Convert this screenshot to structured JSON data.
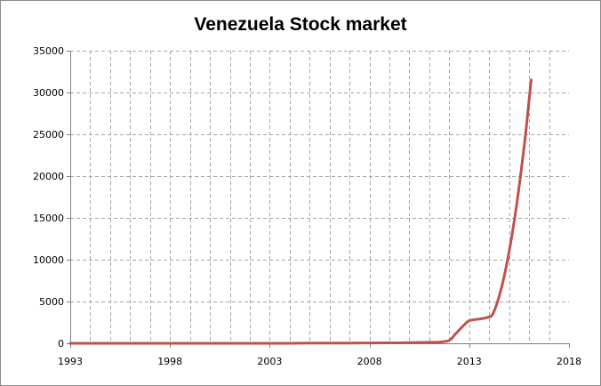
{
  "chart_data": {
    "type": "line",
    "title": "Venezuela Stock market",
    "xlabel": "",
    "ylabel": "",
    "xlim": [
      1993,
      2018
    ],
    "ylim": [
      0,
      35000
    ],
    "x_ticks": [
      "1993",
      "1998",
      "2003",
      "2008",
      "2013",
      "2018"
    ],
    "y_ticks": [
      "0",
      "5000",
      "10000",
      "15000",
      "20000",
      "25000",
      "30000",
      "35000"
    ],
    "grid": true,
    "legend": "none",
    "series": [
      {
        "color": "#c0504d",
        "x": [
          1993,
          1995,
          1997,
          1999,
          2001,
          2003,
          2005,
          2007,
          2008,
          2009,
          2010,
          2011,
          2011.5,
          2012,
          2012.3,
          2012.7,
          2013,
          2013.5,
          2013.9,
          2014.2,
          2014.6,
          2015,
          2015.4,
          2015.8,
          2016.1
        ],
        "y": [
          0,
          0,
          0,
          0,
          0,
          0,
          20,
          30,
          40,
          50,
          80,
          120,
          150,
          350,
          1100,
          2100,
          2700,
          2900,
          3100,
          3600,
          6500,
          11000,
          17000,
          24500,
          31500
        ]
      }
    ]
  }
}
